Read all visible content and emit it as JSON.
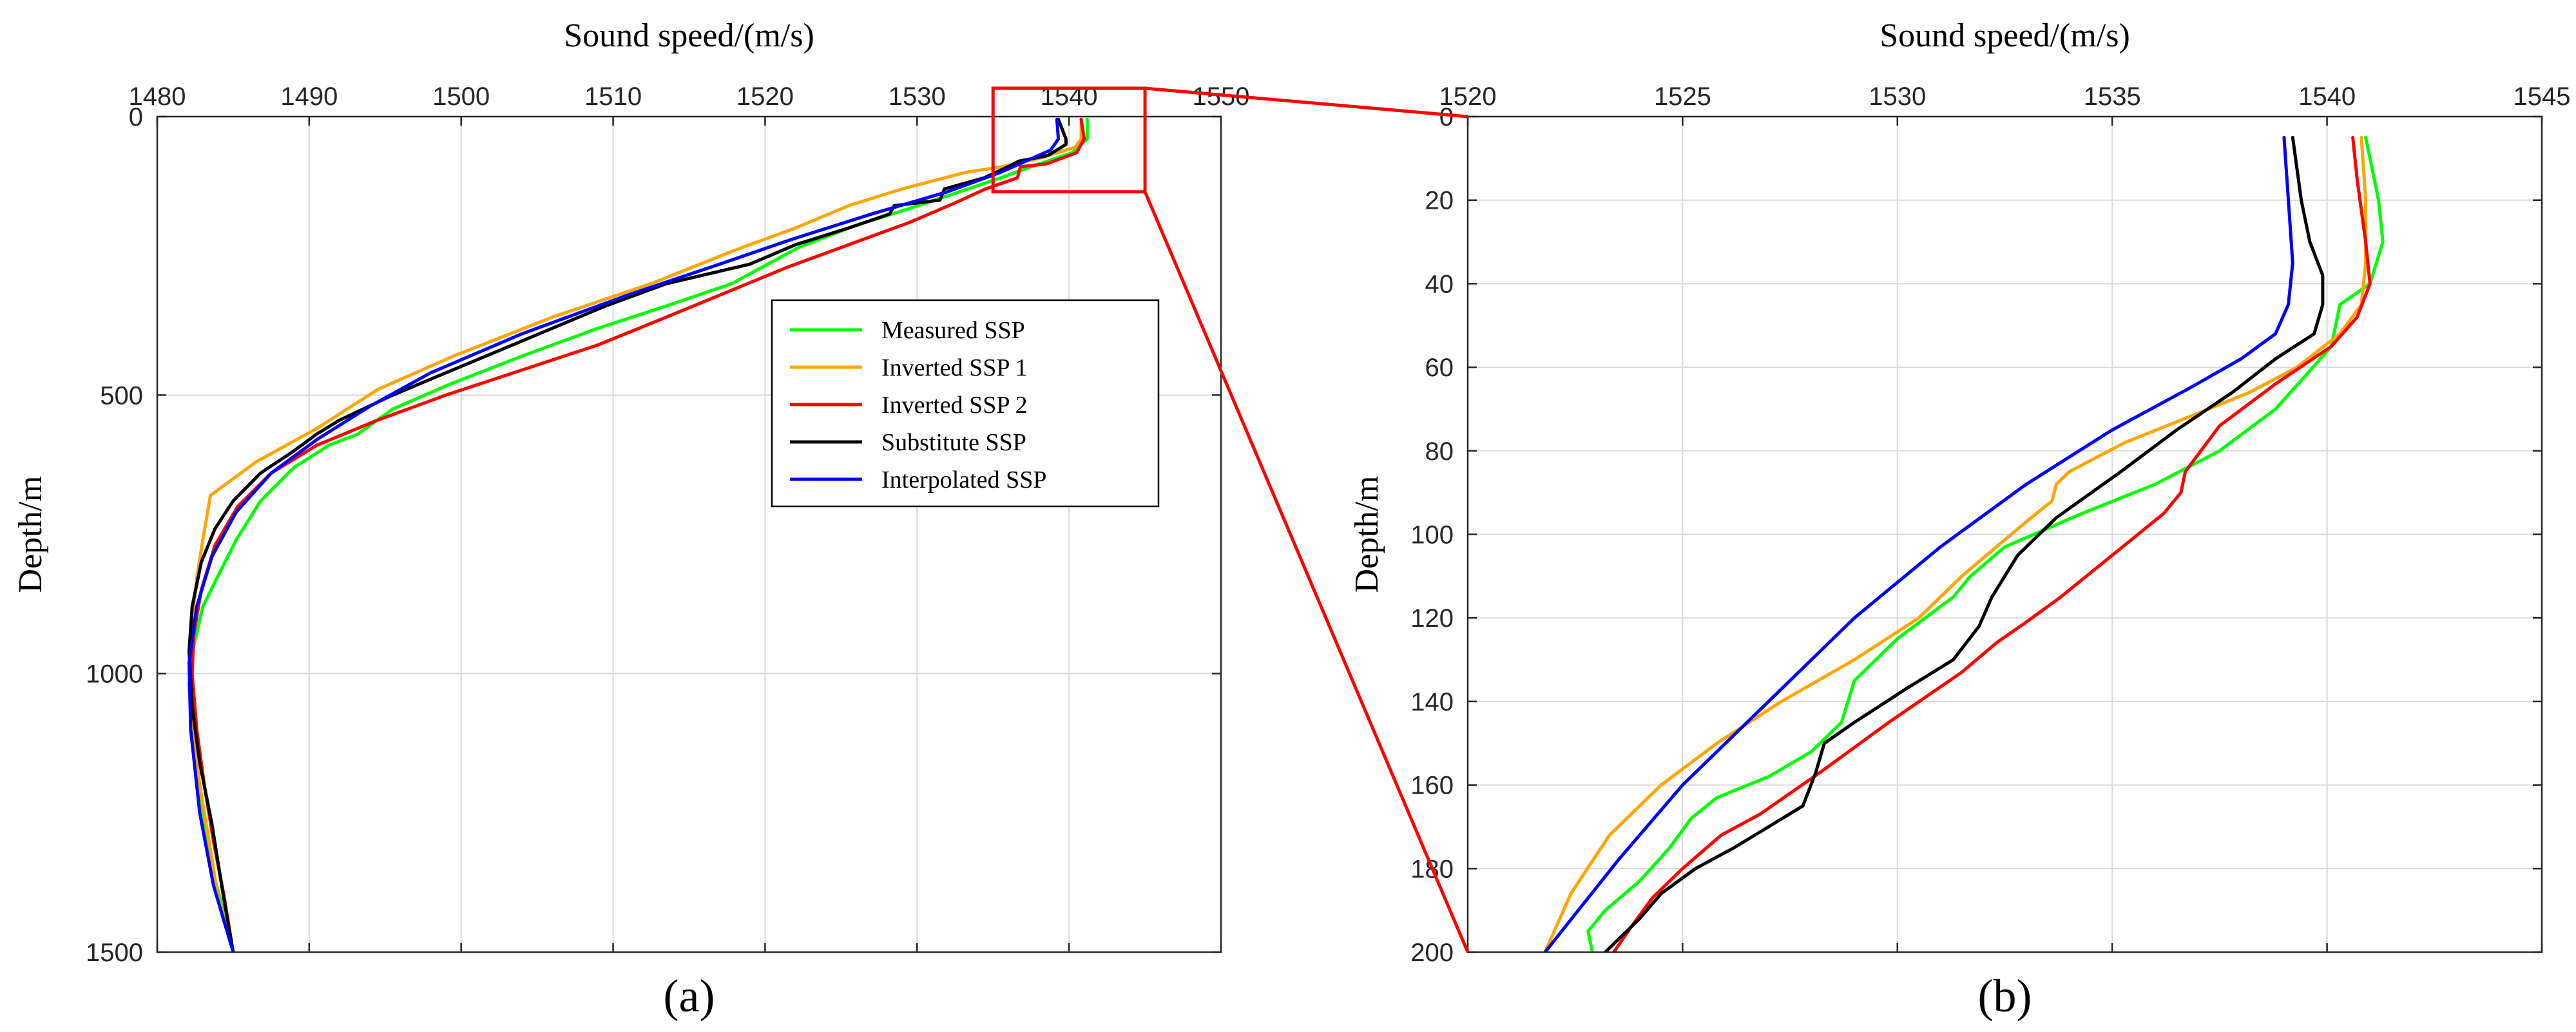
{
  "colors": {
    "measured": "#00ff00",
    "inverted1": "#ffa500",
    "inverted2": "#ff0000",
    "substitute": "#000000",
    "interpolated": "#0000ff",
    "zoom": "#ff0000"
  },
  "legend": [
    {
      "key": "measured",
      "label": "Measured SSP"
    },
    {
      "key": "inverted1",
      "label": "Inverted SSP 1"
    },
    {
      "key": "inverted2",
      "label": "Inverted SSP 2"
    },
    {
      "key": "substitute",
      "label": "Substitute SSP"
    },
    {
      "key": "interpolated",
      "label": "Interpolated SSP"
    }
  ],
  "chart_data": [
    {
      "type": "line",
      "panel": "(a)",
      "xlabel": "Sound speed/(m/s)",
      "ylabel": "Depth/m",
      "xlim": [
        1480,
        1550
      ],
      "ylim": [
        0,
        1500
      ],
      "xticks": [
        1480,
        1490,
        1500,
        1510,
        1520,
        1530,
        1540,
        1550
      ],
      "yticks": [
        0,
        500,
        1000,
        1500
      ],
      "xaxis_position": "top",
      "y_reversed": true,
      "grid": true,
      "legend_position": "center-right",
      "zoom_box": {
        "x": [
          1535,
          1545
        ],
        "y": [
          0,
          135
        ]
      },
      "series": [
        {
          "key": "measured",
          "name": "Measured SSP",
          "x": [
            1541.2,
            1541.2,
            1540.2,
            1537.5,
            1535.5,
            1532.8,
            1529.5,
            1526.0,
            1522.2,
            1517.8,
            1513.5,
            1509.0,
            1504.0,
            1499.3,
            1495.5,
            1493.2,
            1491.3,
            1489.0,
            1486.8,
            1485.2,
            1483.9,
            1483.0,
            1482.4,
            1482.1,
            1482.3,
            1482.6,
            1483.1,
            1483.6,
            1484.3,
            1485.0
          ],
          "y": [
            5,
            40,
            65,
            90,
            110,
            135,
            165,
            195,
            235,
            300,
            340,
            380,
            430,
            480,
            525,
            570,
            590,
            630,
            690,
            760,
            830,
            880,
            950,
            1020,
            1100,
            1200,
            1280,
            1350,
            1420,
            1500
          ]
        },
        {
          "key": "inverted1",
          "name": "Inverted SSP 1",
          "x": [
            1540.8,
            1540.8,
            1540.4,
            1538.0,
            1535.6,
            1533.2,
            1529.0,
            1525.5,
            1522.0,
            1518.0,
            1512.5,
            1506.0,
            1499.5,
            1494.5,
            1490.5,
            1486.5,
            1483.5,
            1483.0,
            1482.6,
            1482.3,
            1482.2,
            1482.4,
            1482.8,
            1483.4,
            1484.0,
            1485.0
          ],
          "y": [
            5,
            40,
            55,
            75,
            90,
            100,
            130,
            160,
            200,
            240,
            300,
            360,
            430,
            490,
            560,
            620,
            680,
            760,
            830,
            900,
            1000,
            1100,
            1200,
            1300,
            1400,
            1500
          ]
        },
        {
          "key": "inverted2",
          "name": "Inverted SSP 2",
          "x": [
            1540.8,
            1541.0,
            1540.5,
            1538.5,
            1536.8,
            1536.6,
            1534.5,
            1532.5,
            1529.5,
            1525.5,
            1521.5,
            1517.5,
            1513.5,
            1509.0,
            1504.0,
            1499.0,
            1494.5,
            1490.5,
            1487.5,
            1485.3,
            1483.8,
            1482.9,
            1482.4,
            1482.3,
            1482.6,
            1483.1,
            1483.7,
            1484.4,
            1485.0
          ],
          "y": [
            5,
            40,
            65,
            85,
            90,
            110,
            130,
            155,
            190,
            230,
            270,
            315,
            360,
            410,
            455,
            500,
            545,
            590,
            640,
            700,
            770,
            850,
            930,
            1000,
            1100,
            1200,
            1300,
            1400,
            1500
          ]
        },
        {
          "key": "substitute",
          "name": "Substitute SSP",
          "x": [
            1539.3,
            1539.8,
            1539.8,
            1538.6,
            1536.7,
            1536.0,
            1534.4,
            1531.8,
            1531.5,
            1528.5,
            1528.2,
            1525.5,
            1522.0,
            1519.0,
            1513.5,
            1509.5,
            1506.0,
            1502.5,
            1499.0,
            1495.5,
            1492.0,
            1490.5,
            1489.0,
            1486.8,
            1485.0,
            1483.8,
            1482.9,
            1482.3,
            1482.1,
            1482.3,
            1482.8,
            1483.6,
            1484.3,
            1485.0
          ],
          "y": [
            5,
            40,
            50,
            70,
            80,
            90,
            110,
            130,
            150,
            160,
            175,
            200,
            230,
            265,
            300,
            340,
            380,
            420,
            460,
            500,
            545,
            570,
            600,
            640,
            690,
            740,
            800,
            880,
            960,
            1060,
            1160,
            1270,
            1390,
            1500
          ]
        },
        {
          "key": "interpolated",
          "name": "Interpolated SSP",
          "x": [
            1539.2,
            1539.3,
            1538.8,
            1535.5,
            1532.0,
            1527.0,
            1521.8,
            1517.0,
            1511.0,
            1504.0,
            1498.0,
            1494.0,
            1490.5,
            1487.5,
            1485.2,
            1483.6,
            1482.6,
            1482.1,
            1482.2,
            1482.8,
            1483.7,
            1485.0
          ],
          "y": [
            5,
            40,
            60,
            100,
            135,
            175,
            220,
            265,
            320,
            390,
            460,
            520,
            580,
            640,
            710,
            790,
            880,
            980,
            1100,
            1250,
            1380,
            1500
          ]
        }
      ]
    },
    {
      "type": "line",
      "panel": "(b)",
      "xlabel": "Sound speed/(m/s)",
      "ylabel": "Depth/m",
      "xlim": [
        1520,
        1545
      ],
      "ylim": [
        0,
        200
      ],
      "xticks": [
        1520,
        1525,
        1530,
        1535,
        1540,
        1545
      ],
      "yticks": [
        0,
        20,
        40,
        60,
        80,
        100,
        120,
        140,
        160,
        180,
        200
      ],
      "xaxis_position": "top",
      "y_reversed": true,
      "grid": true,
      "series": [
        {
          "key": "measured",
          "name": "Measured SSP",
          "x": [
            1540.9,
            1541.0,
            1541.2,
            1541.3,
            1541.0,
            1540.3,
            1540.1,
            1539.5,
            1538.8,
            1537.5,
            1536.0,
            1534.3,
            1532.5,
            1531.7,
            1531.3,
            1530.0,
            1529.0,
            1528.7,
            1528.0,
            1527.0,
            1525.8,
            1525.2,
            1524.7,
            1524.0,
            1523.2,
            1522.8,
            1522.9
          ],
          "y": [
            5,
            10,
            20,
            30,
            40,
            45,
            55,
            62,
            70,
            80,
            88,
            95,
            103,
            110,
            115,
            125,
            135,
            145,
            152,
            158,
            163,
            168,
            175,
            183,
            190,
            195,
            200
          ]
        },
        {
          "key": "inverted1",
          "name": "Inverted SSP 1",
          "x": [
            1540.8,
            1540.9,
            1540.9,
            1540.8,
            1540.3,
            1539.3,
            1538.2,
            1537.0,
            1535.3,
            1534.0,
            1533.7,
            1533.6,
            1533.0,
            1532.3,
            1531.5,
            1530.5,
            1529.0,
            1527.3,
            1525.8,
            1524.5,
            1523.3,
            1522.4,
            1521.8
          ],
          "y": [
            5,
            20,
            35,
            45,
            52,
            60,
            66,
            71,
            78,
            85,
            88,
            92,
            97,
            103,
            110,
            120,
            130,
            140,
            150,
            160,
            172,
            186,
            200
          ]
        },
        {
          "key": "inverted2",
          "name": "Inverted SSP 2",
          "x": [
            1540.6,
            1540.7,
            1540.9,
            1541.0,
            1540.7,
            1540.1,
            1538.8,
            1537.5,
            1536.7,
            1536.6,
            1536.2,
            1535.0,
            1533.8,
            1533.0,
            1532.3,
            1531.5,
            1529.8,
            1528.2,
            1526.8,
            1525.9,
            1525.0,
            1524.3,
            1523.8,
            1523.4
          ],
          "y": [
            5,
            15,
            30,
            40,
            48,
            55,
            64,
            74,
            85,
            90,
            95,
            105,
            115,
            121,
            126,
            133,
            145,
            157,
            167,
            172,
            180,
            187,
            194,
            200
          ]
        },
        {
          "key": "substitute",
          "name": "Substitute SSP",
          "x": [
            1539.2,
            1539.4,
            1539.6,
            1539.9,
            1539.9,
            1539.7,
            1538.8,
            1537.8,
            1536.5,
            1535.2,
            1533.7,
            1532.8,
            1532.2,
            1531.9,
            1531.3,
            1530.2,
            1529.0,
            1528.3,
            1528.1,
            1527.8,
            1527.0,
            1526.2,
            1525.3,
            1524.5,
            1524.0,
            1523.5,
            1523.2
          ],
          "y": [
            5,
            20,
            30,
            38,
            45,
            52,
            58,
            66,
            75,
            85,
            96,
            105,
            115,
            122,
            130,
            137,
            145,
            150,
            157,
            165,
            170,
            175,
            180,
            186,
            192,
            197,
            200
          ]
        },
        {
          "key": "interpolated",
          "name": "Interpolated SSP",
          "x": [
            1539.0,
            1539.1,
            1539.2,
            1539.1,
            1538.8,
            1538.0,
            1536.8,
            1535.0,
            1533.0,
            1531.0,
            1529.0,
            1527.0,
            1525.0,
            1523.5,
            1521.8
          ],
          "y": [
            5,
            20,
            35,
            45,
            52,
            58,
            65,
            75,
            88,
            103,
            120,
            140,
            160,
            178,
            200
          ]
        }
      ]
    }
  ]
}
